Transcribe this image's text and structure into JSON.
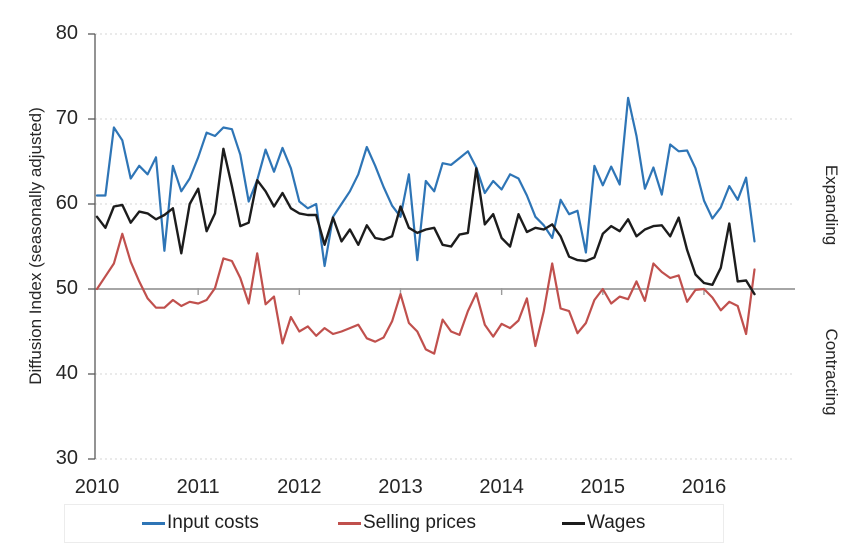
{
  "chart_data": {
    "type": "line",
    "title": "",
    "ylabel": "Diffusion Index (seasonally adjusted)",
    "right_label_top": "Expanding",
    "right_label_bottom": "Contracting",
    "x_unit": "monthly",
    "x_start": "2010-01",
    "x_end": "2016-07",
    "x_tick_labels": [
      "2010",
      "2011",
      "2012",
      "2013",
      "2014",
      "2015",
      "2016"
    ],
    "y_ticks": [
      80,
      70,
      60,
      50,
      40,
      30
    ],
    "ylim": [
      30,
      80
    ],
    "baseline_value": 50,
    "grid_values": [
      80,
      70,
      60,
      40,
      30
    ],
    "grid_on": true,
    "legend_position": "bottom",
    "series": [
      {
        "name": "Input costs",
        "color": "#2E75B6",
        "values": [
          61,
          61,
          69,
          67.5,
          63,
          64.5,
          63.5,
          65.5,
          54.5,
          64.5,
          61.5,
          63,
          65.5,
          68.4,
          68,
          69,
          68.8,
          65.8,
          60.3,
          62.8,
          66.4,
          63.8,
          66.6,
          64.2,
          60.3,
          59.5,
          60,
          52.7,
          58.5,
          60,
          61.5,
          63.5,
          66.7,
          64.5,
          62,
          59.8,
          58.5,
          63.5,
          53.4,
          62.7,
          61.5,
          64.8,
          64.6,
          65.4,
          66.2,
          64.3,
          61.3,
          62.7,
          61.7,
          63.5,
          63,
          61,
          58.5,
          57.5,
          56,
          60.5,
          58.8,
          59.2,
          54.3,
          64.5,
          62.2,
          64.4,
          62.3,
          72.5,
          68,
          61.8,
          64.3,
          61.1,
          67,
          66.2,
          66.3,
          64.2,
          60.4,
          58.3,
          59.6,
          62.1,
          60.5,
          63.1,
          55.6
        ]
      },
      {
        "name": "Selling prices",
        "color": "#C0504D",
        "values": [
          50,
          51.5,
          53,
          56.5,
          53.2,
          50.9,
          48.9,
          47.8,
          47.8,
          48.7,
          48,
          48.5,
          48.3,
          48.7,
          50.1,
          53.6,
          53.3,
          51.3,
          48.3,
          54.2,
          48.2,
          49.1,
          43.6,
          46.7,
          45,
          45.6,
          44.5,
          45.4,
          44.7,
          45,
          45.4,
          45.8,
          44.2,
          43.8,
          44.3,
          46.2,
          49.4,
          46,
          45,
          42.9,
          42.4,
          46.4,
          45,
          44.6,
          47.4,
          49.5,
          45.8,
          44.4,
          45.9,
          45.4,
          46.3,
          48.9,
          43.3,
          47.4,
          53,
          47.7,
          47.4,
          44.8,
          46,
          48.7,
          50,
          48.3,
          49.1,
          48.8,
          50.9,
          48.6,
          53,
          52,
          51.3,
          51.6,
          48.5,
          49.9,
          50,
          49,
          47.5,
          48.5,
          48,
          44.7,
          52.3
        ]
      },
      {
        "name": "Wages",
        "color": "#1C1C1C",
        "values": [
          58.5,
          57.2,
          59.7,
          59.9,
          57.8,
          59.1,
          58.9,
          58.2,
          58.7,
          59.5,
          54.2,
          60,
          61.8,
          56.8,
          58.9,
          66.5,
          62.1,
          57.4,
          57.8,
          62.8,
          61.5,
          59.7,
          61.3,
          59.5,
          58.9,
          58.7,
          58.7,
          55.2,
          58.4,
          55.6,
          57,
          55.2,
          57.5,
          56,
          55.8,
          56.2,
          59.7,
          57.2,
          56.6,
          57,
          57.2,
          55.2,
          55,
          56.4,
          56.6,
          64.2,
          57.6,
          58.8,
          56,
          55,
          58.8,
          56.7,
          57.2,
          57,
          57.6,
          56.2,
          53.8,
          53.4,
          53.3,
          53.7,
          56.5,
          57.4,
          56.8,
          58.2,
          56.2,
          57,
          57.4,
          57.5,
          56.2,
          58.4,
          54.6,
          51.7,
          50.7,
          50.5,
          52.5,
          57.7,
          50.9,
          51,
          49.4
        ]
      }
    ]
  },
  "colors": {
    "baseline": "#A6A6A6",
    "grid": "#D4D4D4",
    "axis": "#595959",
    "x_tick": "#9B9B9B",
    "text": "#262626",
    "legend_border": "#ECECEC"
  }
}
